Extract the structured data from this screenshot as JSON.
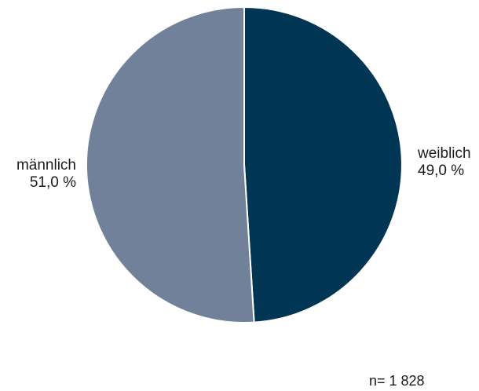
{
  "chart_data": {
    "type": "pie",
    "slices": [
      {
        "name": "weiblich",
        "value": 49.0,
        "value_label": "49,0 %",
        "color": "#003654"
      },
      {
        "name": "männlich",
        "value": 51.0,
        "value_label": "51,0 %",
        "color": "#718199"
      }
    ],
    "start": "12 o'clock",
    "direction": "clockwise",
    "separator_color": "#ffffff",
    "sample_size_label": "n= 1 828"
  }
}
